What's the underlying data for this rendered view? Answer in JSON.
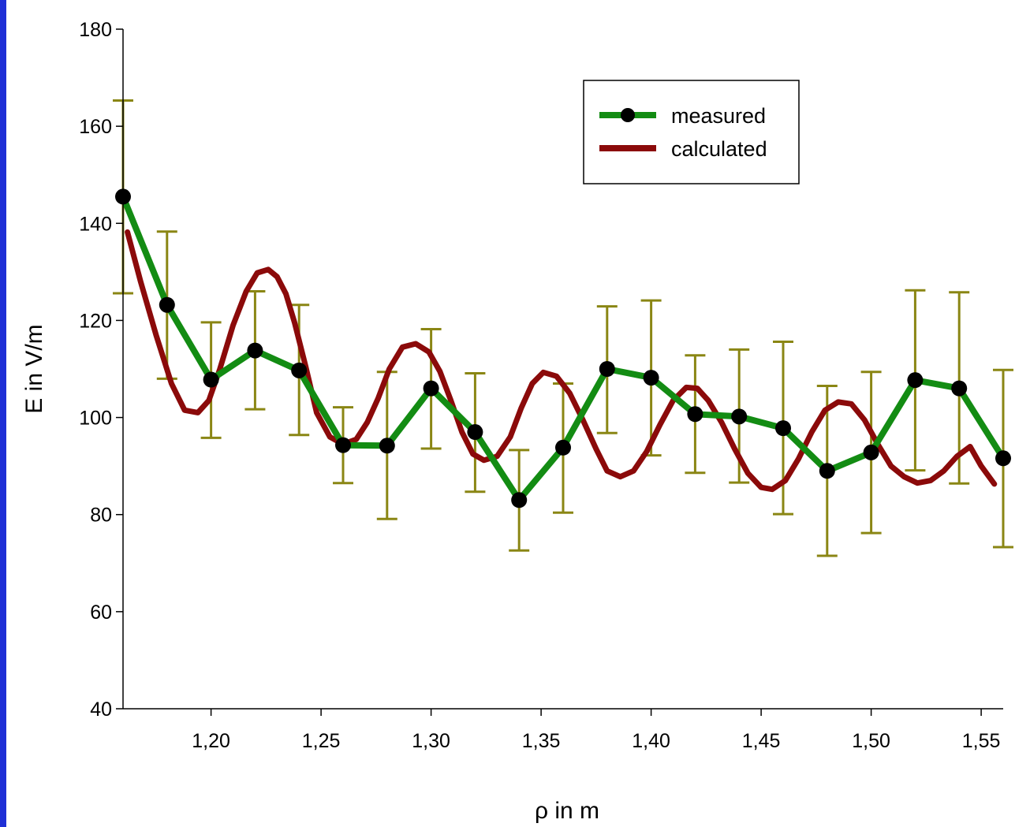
{
  "colors": {
    "background": "#1f2fd6",
    "measured": "#138c13",
    "calculated": "#8b0a0a",
    "errorbars": "#8a8614",
    "marker": "#000000"
  },
  "chart_data": {
    "type": "line",
    "xlabel": "ρ in m",
    "ylabel": "E in V/m",
    "xlim": [
      1.16,
      1.56
    ],
    "ylim": [
      40,
      180
    ],
    "xticks": [
      1.2,
      1.25,
      1.3,
      1.35,
      1.4,
      1.45,
      1.5,
      1.55
    ],
    "xtick_labels": [
      "1,20",
      "1,25",
      "1,30",
      "1,35",
      "1,40",
      "1,45",
      "1,50",
      "1,55"
    ],
    "yticks": [
      40,
      60,
      80,
      100,
      120,
      140,
      160,
      180
    ],
    "ytick_labels": [
      "40",
      "60",
      "80",
      "100",
      "120",
      "140",
      "160",
      "180"
    ],
    "grid": false,
    "legend_position": "top-right",
    "series": [
      {
        "name": "measured",
        "marker": "circle",
        "x": [
          1.16,
          1.18,
          1.2,
          1.22,
          1.24,
          1.26,
          1.28,
          1.3,
          1.32,
          1.34,
          1.36,
          1.38,
          1.4,
          1.42,
          1.44,
          1.46,
          1.48,
          1.5,
          1.52,
          1.54,
          1.56
        ],
        "y": [
          145.5,
          123.2,
          107.8,
          113.8,
          109.7,
          94.3,
          94.2,
          106.0,
          97.0,
          83.0,
          93.8,
          110.0,
          108.2,
          100.7,
          100.2,
          97.8,
          89.0,
          92.8,
          107.7,
          106.0,
          91.6
        ],
        "err_upper": [
          165.3,
          138.3,
          119.6,
          126.0,
          123.2,
          102.1,
          109.4,
          118.2,
          109.1,
          93.3,
          107.0,
          122.9,
          124.1,
          112.8,
          114.0,
          115.6,
          106.5,
          109.4,
          126.2,
          125.8,
          109.8
        ],
        "err_lower": [
          125.6,
          108.0,
          95.8,
          101.7,
          96.4,
          86.5,
          79.1,
          93.6,
          84.7,
          72.6,
          80.4,
          96.8,
          92.2,
          88.6,
          86.6,
          80.1,
          71.5,
          76.2,
          89.1,
          86.4,
          73.3
        ]
      },
      {
        "name": "calculated",
        "x": [
          1.162,
          1.168,
          1.175,
          1.182,
          1.188,
          1.194,
          1.199,
          1.204,
          1.21,
          1.216,
          1.221,
          1.226,
          1.23,
          1.234,
          1.238,
          1.243,
          1.248,
          1.254,
          1.26,
          1.266,
          1.271,
          1.276,
          1.281,
          1.287,
          1.293,
          1.299,
          1.304,
          1.309,
          1.314,
          1.319,
          1.324,
          1.33,
          1.336,
          1.341,
          1.346,
          1.351,
          1.357,
          1.363,
          1.369,
          1.375,
          1.38,
          1.386,
          1.392,
          1.398,
          1.404,
          1.41,
          1.416,
          1.421,
          1.426,
          1.432,
          1.438,
          1.444,
          1.45,
          1.455,
          1.461,
          1.467,
          1.473,
          1.479,
          1.485,
          1.491,
          1.497,
          1.503,
          1.509,
          1.515,
          1.521,
          1.527,
          1.533,
          1.539,
          1.545,
          1.55,
          1.556
        ],
        "y": [
          138.2,
          128.0,
          117.0,
          107.0,
          101.5,
          101.0,
          103.5,
          110.0,
          119.0,
          126.0,
          129.8,
          130.5,
          129.0,
          125.5,
          119.5,
          110.5,
          101.0,
          96.0,
          94.5,
          95.5,
          99.0,
          104.0,
          110.0,
          114.5,
          115.2,
          113.5,
          109.5,
          103.5,
          97.0,
          92.5,
          91.2,
          92.0,
          96.0,
          102.0,
          107.0,
          109.3,
          108.5,
          105.0,
          99.5,
          93.5,
          89.0,
          87.8,
          89.0,
          93.0,
          98.5,
          103.5,
          106.2,
          106.0,
          103.5,
          99.0,
          93.5,
          88.5,
          85.6,
          85.2,
          87.0,
          91.5,
          97.0,
          101.5,
          103.2,
          102.8,
          99.5,
          94.5,
          90.0,
          87.8,
          86.5,
          87.0,
          89.0,
          92.0,
          94.0,
          90.0,
          86.3
        ]
      }
    ]
  }
}
